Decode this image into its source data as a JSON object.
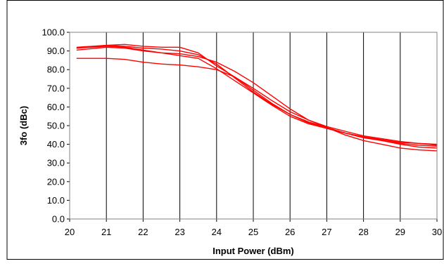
{
  "chart_data": {
    "type": "line",
    "title": "",
    "xlabel": "Input Power (dBm)",
    "ylabel": "3fo (dBc)",
    "xlim": [
      20,
      30
    ],
    "ylim": [
      0,
      100
    ],
    "xticks": [
      "20",
      "21",
      "22",
      "23",
      "24",
      "25",
      "26",
      "27",
      "28",
      "29",
      "30"
    ],
    "yticks": [
      "0.0",
      "10.0",
      "20.0",
      "30.0",
      "40.0",
      "50.0",
      "60.0",
      "70.0",
      "80.0",
      "90.0",
      "100.0"
    ],
    "grid": "vertical",
    "legend": "none",
    "line_color": "#ff0000",
    "series": [
      {
        "x": [
          20.2,
          21,
          21.5,
          22,
          22.5,
          23,
          23.5,
          24,
          24.5,
          25,
          25.5,
          26,
          26.5,
          27,
          27.5,
          28,
          28.5,
          29,
          29.5,
          30
        ],
        "values": [
          91.5,
          93,
          93.5,
          92.5,
          92,
          92,
          89,
          82,
          76,
          69,
          62,
          56,
          52,
          49,
          46,
          44,
          42.5,
          41,
          40.5,
          39.5
        ]
      },
      {
        "x": [
          20.2,
          21,
          21.5,
          22,
          22.5,
          23,
          23.5,
          24,
          24.5,
          25,
          25.5,
          26,
          26.5,
          27,
          27.5,
          28,
          28.5,
          29,
          29.5,
          30
        ],
        "values": [
          90.5,
          92,
          91.5,
          90,
          89,
          88.5,
          87,
          84,
          79,
          73,
          66,
          59,
          53,
          49,
          45,
          42,
          40,
          38,
          37,
          36.5
        ]
      },
      {
        "x": [
          20.2,
          21,
          21.5,
          22,
          22.5,
          23,
          23.5,
          24,
          24.5,
          25,
          25.5,
          26,
          26.5,
          27,
          27.5,
          28,
          28.5,
          29,
          29.5,
          30
        ],
        "values": [
          86,
          86,
          85.5,
          84,
          83,
          82.5,
          81.5,
          80,
          76,
          70,
          63.5,
          57.5,
          53,
          49.5,
          47,
          44.5,
          43,
          41.5,
          40.5,
          40
        ]
      },
      {
        "x": [
          20.2,
          21,
          21.5,
          22,
          22.5,
          23,
          23.5,
          24,
          24.5,
          25,
          25.5,
          26,
          26.5,
          27,
          27.5,
          28,
          28.5,
          29,
          29.5,
          30
        ],
        "values": [
          91.5,
          92.5,
          92,
          90.5,
          89,
          87.5,
          86,
          80.5,
          74,
          67.5,
          61,
          55,
          51,
          48.5,
          46,
          43.5,
          42,
          40.5,
          39.5,
          39
        ]
      },
      {
        "x": [
          20.2,
          21,
          21.5,
          22,
          22.5,
          23,
          23.5,
          24,
          24.5,
          25,
          25.5,
          26,
          26.5,
          27,
          27.5,
          28,
          28.5,
          29,
          29.5,
          30
        ],
        "values": [
          92,
          93,
          92.5,
          91.5,
          91,
          90,
          88,
          83,
          75.5,
          68,
          61.5,
          56,
          51.5,
          48.5,
          46,
          44,
          42,
          40,
          38.5,
          38
        ]
      }
    ]
  }
}
